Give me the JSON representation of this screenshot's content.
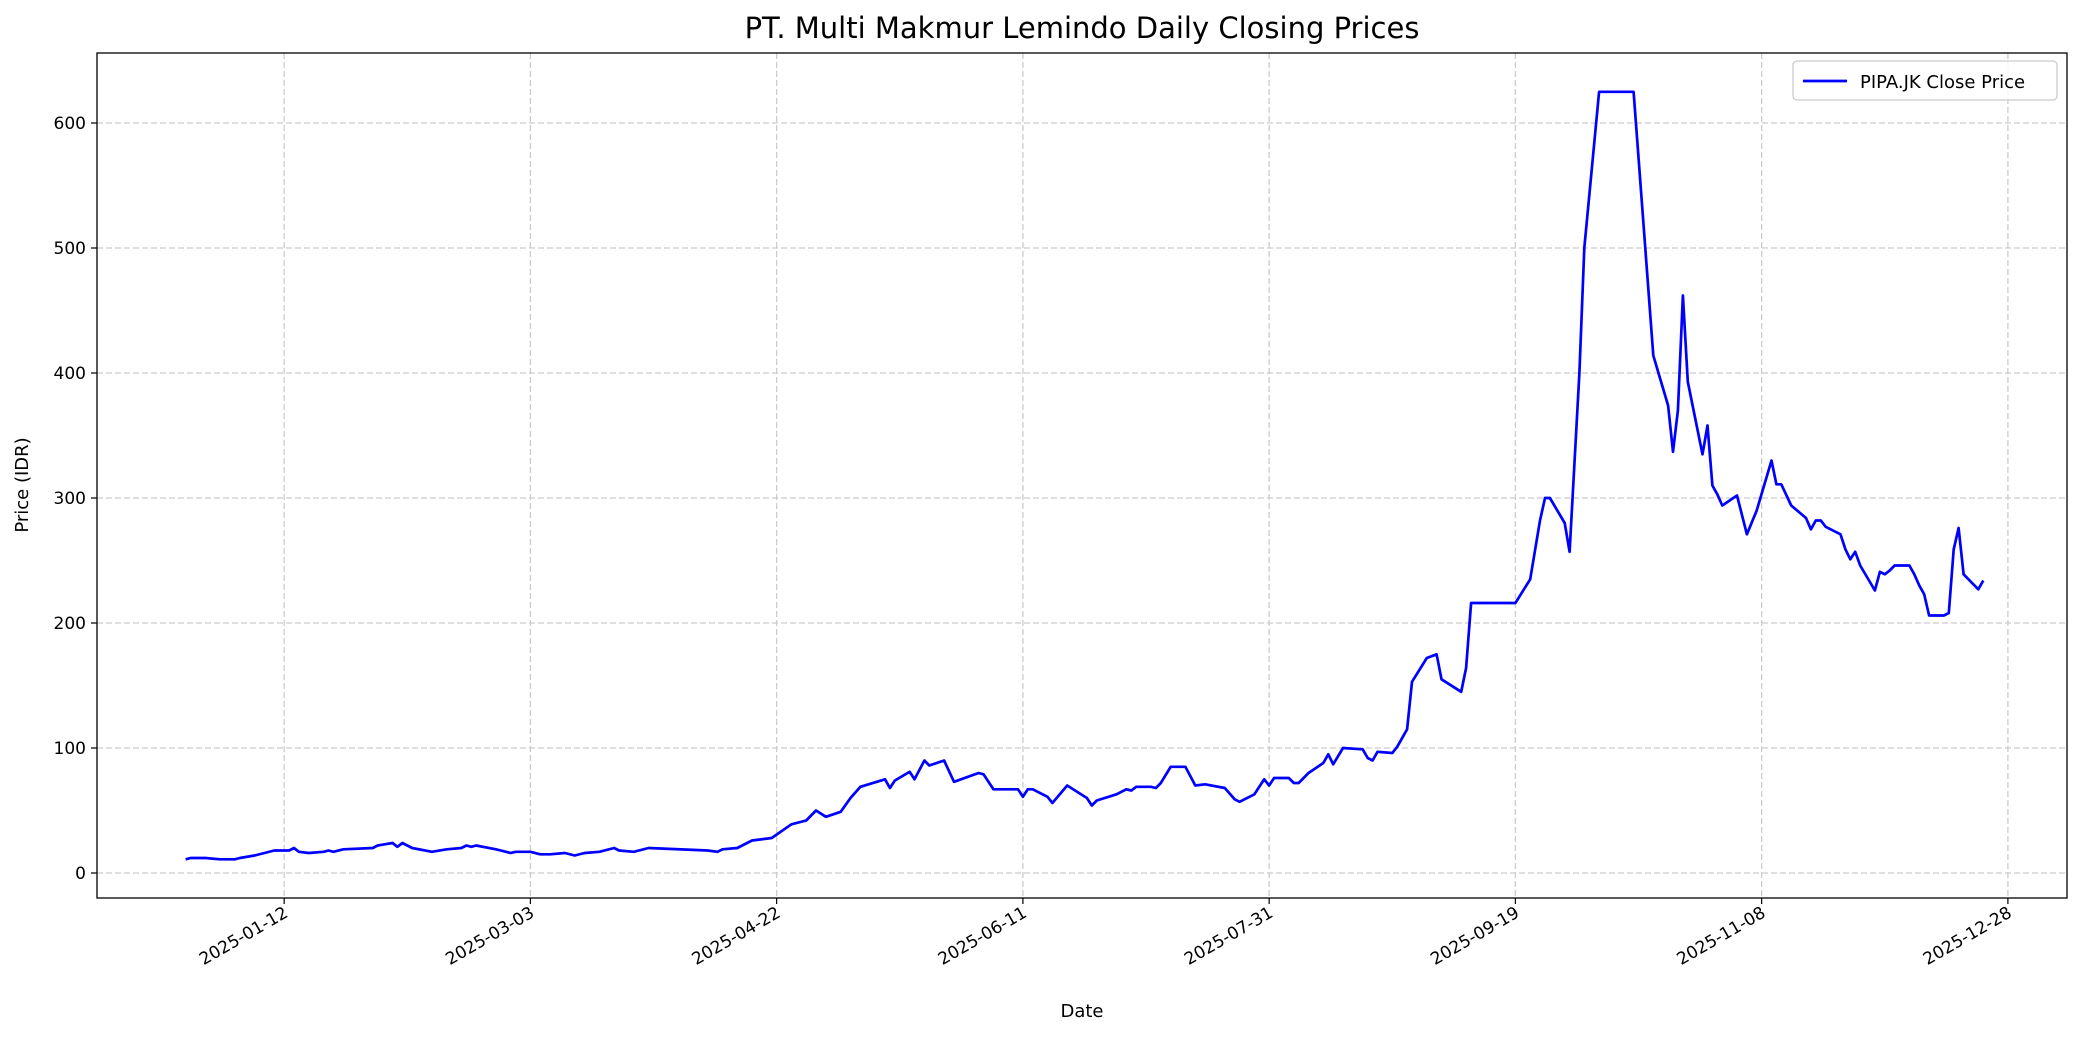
{
  "chart_data": {
    "type": "line",
    "title": "PT. Multi Makmur Lemindo Daily Closing Prices",
    "xlabel": "Date",
    "ylabel": "Price (IDR)",
    "xlim": [
      "2024-12-05",
      "2026-01-09"
    ],
    "ylim": [
      -20,
      656
    ],
    "grid": true,
    "grid_style": "dashed",
    "legend_position": "top-right",
    "x_ticks": [
      "2025-01-12",
      "2025-03-03",
      "2025-04-22",
      "2025-06-11",
      "2025-07-31",
      "2025-09-19",
      "2025-11-08",
      "2025-12-28"
    ],
    "y_ticks": [
      0,
      100,
      200,
      300,
      400,
      500,
      600
    ],
    "series": [
      {
        "name": "PIPA.JK Close Price",
        "color": "#0000ff",
        "points": [
          [
            "2024-12-23",
            11
          ],
          [
            "2024-12-24",
            12
          ],
          [
            "2024-12-27",
            12
          ],
          [
            "2024-12-30",
            11
          ],
          [
            "2025-01-02",
            11
          ],
          [
            "2025-01-03",
            12
          ],
          [
            "2025-01-06",
            14
          ],
          [
            "2025-01-10",
            18
          ],
          [
            "2025-01-13",
            18
          ],
          [
            "2025-01-14",
            20
          ],
          [
            "2025-01-15",
            17
          ],
          [
            "2025-01-17",
            16
          ],
          [
            "2025-01-20",
            17
          ],
          [
            "2025-01-21",
            18
          ],
          [
            "2025-01-22",
            17
          ],
          [
            "2025-01-24",
            19
          ],
          [
            "2025-01-30",
            20
          ],
          [
            "2025-01-31",
            22
          ],
          [
            "2025-02-03",
            24
          ],
          [
            "2025-02-04",
            21
          ],
          [
            "2025-02-05",
            24
          ],
          [
            "2025-02-07",
            20
          ],
          [
            "2025-02-11",
            17
          ],
          [
            "2025-02-14",
            19
          ],
          [
            "2025-02-17",
            20
          ],
          [
            "2025-02-18",
            22
          ],
          [
            "2025-02-19",
            21
          ],
          [
            "2025-02-20",
            22
          ],
          [
            "2025-02-24",
            19
          ],
          [
            "2025-02-25",
            18
          ],
          [
            "2025-02-27",
            16
          ],
          [
            "2025-02-28",
            17
          ],
          [
            "2025-03-03",
            17
          ],
          [
            "2025-03-05",
            15
          ],
          [
            "2025-03-07",
            15
          ],
          [
            "2025-03-10",
            16
          ],
          [
            "2025-03-12",
            14
          ],
          [
            "2025-03-14",
            16
          ],
          [
            "2025-03-17",
            17
          ],
          [
            "2025-03-20",
            20
          ],
          [
            "2025-03-21",
            18
          ],
          [
            "2025-03-24",
            17
          ],
          [
            "2025-03-27",
            20
          ],
          [
            "2025-04-08",
            18
          ],
          [
            "2025-04-10",
            17
          ],
          [
            "2025-04-11",
            19
          ],
          [
            "2025-04-14",
            20
          ],
          [
            "2025-04-17",
            26
          ],
          [
            "2025-04-21",
            28
          ],
          [
            "2025-04-25",
            39
          ],
          [
            "2025-04-28",
            42
          ],
          [
            "2025-04-30",
            50
          ],
          [
            "2025-05-02",
            45
          ],
          [
            "2025-05-05",
            49
          ],
          [
            "2025-05-07",
            60
          ],
          [
            "2025-05-09",
            69
          ],
          [
            "2025-05-14",
            75
          ],
          [
            "2025-05-15",
            68
          ],
          [
            "2025-05-16",
            74
          ],
          [
            "2025-05-19",
            81
          ],
          [
            "2025-05-20",
            75
          ],
          [
            "2025-05-22",
            90
          ],
          [
            "2025-05-23",
            86
          ],
          [
            "2025-05-26",
            90
          ],
          [
            "2025-05-28",
            73
          ],
          [
            "2025-06-02",
            80
          ],
          [
            "2025-06-03",
            79
          ],
          [
            "2025-06-05",
            67
          ],
          [
            "2025-06-10",
            67
          ],
          [
            "2025-06-11",
            61
          ],
          [
            "2025-06-12",
            67
          ],
          [
            "2025-06-13",
            67
          ],
          [
            "2025-06-16",
            61
          ],
          [
            "2025-06-17",
            56
          ],
          [
            "2025-06-20",
            70
          ],
          [
            "2025-06-24",
            60
          ],
          [
            "2025-06-25",
            54
          ],
          [
            "2025-06-26",
            58
          ],
          [
            "2025-06-30",
            63
          ],
          [
            "2025-07-02",
            67
          ],
          [
            "2025-07-03",
            66
          ],
          [
            "2025-07-04",
            69
          ],
          [
            "2025-07-07",
            69
          ],
          [
            "2025-07-08",
            68
          ],
          [
            "2025-07-09",
            72
          ],
          [
            "2025-07-11",
            85
          ],
          [
            "2025-07-14",
            85
          ],
          [
            "2025-07-16",
            70
          ],
          [
            "2025-07-18",
            71
          ],
          [
            "2025-07-22",
            68
          ],
          [
            "2025-07-24",
            59
          ],
          [
            "2025-07-25",
            57
          ],
          [
            "2025-07-28",
            63
          ],
          [
            "2025-07-30",
            75
          ],
          [
            "2025-07-31",
            70
          ],
          [
            "2025-08-01",
            76
          ],
          [
            "2025-08-04",
            76
          ],
          [
            "2025-08-05",
            72
          ],
          [
            "2025-08-06",
            72
          ],
          [
            "2025-08-08",
            80
          ],
          [
            "2025-08-11",
            88
          ],
          [
            "2025-08-12",
            95
          ],
          [
            "2025-08-13",
            87
          ],
          [
            "2025-08-15",
            100
          ],
          [
            "2025-08-19",
            99
          ],
          [
            "2025-08-20",
            92
          ],
          [
            "2025-08-21",
            90
          ],
          [
            "2025-08-22",
            97
          ],
          [
            "2025-08-25",
            96
          ],
          [
            "2025-08-26",
            101
          ],
          [
            "2025-08-28",
            115
          ],
          [
            "2025-08-29",
            153
          ],
          [
            "2025-09-01",
            172
          ],
          [
            "2025-09-03",
            175
          ],
          [
            "2025-09-04",
            155
          ],
          [
            "2025-09-08",
            145
          ],
          [
            "2025-09-09",
            164
          ],
          [
            "2025-09-10",
            216
          ],
          [
            "2025-09-19",
            216
          ],
          [
            "2025-09-22",
            235
          ],
          [
            "2025-09-24",
            282
          ],
          [
            "2025-09-25",
            300
          ],
          [
            "2025-09-26",
            300
          ],
          [
            "2025-09-29",
            280
          ],
          [
            "2025-09-30",
            257
          ],
          [
            "2025-10-02",
            400
          ],
          [
            "2025-10-03",
            500
          ],
          [
            "2025-10-06",
            625
          ],
          [
            "2025-10-13",
            625
          ],
          [
            "2025-10-17",
            414
          ],
          [
            "2025-10-20",
            374
          ],
          [
            "2025-10-21",
            337
          ],
          [
            "2025-10-22",
            370
          ],
          [
            "2025-10-23",
            462
          ],
          [
            "2025-10-24",
            393
          ],
          [
            "2025-10-27",
            335
          ],
          [
            "2025-10-28",
            358
          ],
          [
            "2025-10-29",
            310
          ],
          [
            "2025-10-30",
            303
          ],
          [
            "2025-10-31",
            294
          ],
          [
            "2025-11-03",
            302
          ],
          [
            "2025-11-05",
            271
          ],
          [
            "2025-11-07",
            290
          ],
          [
            "2025-11-10",
            330
          ],
          [
            "2025-11-11",
            311
          ],
          [
            "2025-11-12",
            311
          ],
          [
            "2025-11-14",
            294
          ],
          [
            "2025-11-17",
            284
          ],
          [
            "2025-11-18",
            275
          ],
          [
            "2025-11-19",
            282
          ],
          [
            "2025-11-20",
            282
          ],
          [
            "2025-11-21",
            277
          ],
          [
            "2025-11-24",
            271
          ],
          [
            "2025-11-25",
            259
          ],
          [
            "2025-11-26",
            251
          ],
          [
            "2025-11-27",
            257
          ],
          [
            "2025-11-28",
            246
          ],
          [
            "2025-12-01",
            226
          ],
          [
            "2025-12-02",
            241
          ],
          [
            "2025-12-03",
            239
          ],
          [
            "2025-12-04",
            242
          ],
          [
            "2025-12-05",
            246
          ],
          [
            "2025-12-08",
            246
          ],
          [
            "2025-12-09",
            239
          ],
          [
            "2025-12-10",
            230
          ],
          [
            "2025-12-11",
            223
          ],
          [
            "2025-12-12",
            206
          ],
          [
            "2025-12-15",
            206
          ],
          [
            "2025-12-16",
            208
          ],
          [
            "2025-12-17",
            259
          ],
          [
            "2025-12-18",
            276
          ],
          [
            "2025-12-19",
            239
          ],
          [
            "2025-12-22",
            227
          ],
          [
            "2025-12-23",
            234
          ]
        ]
      }
    ]
  }
}
